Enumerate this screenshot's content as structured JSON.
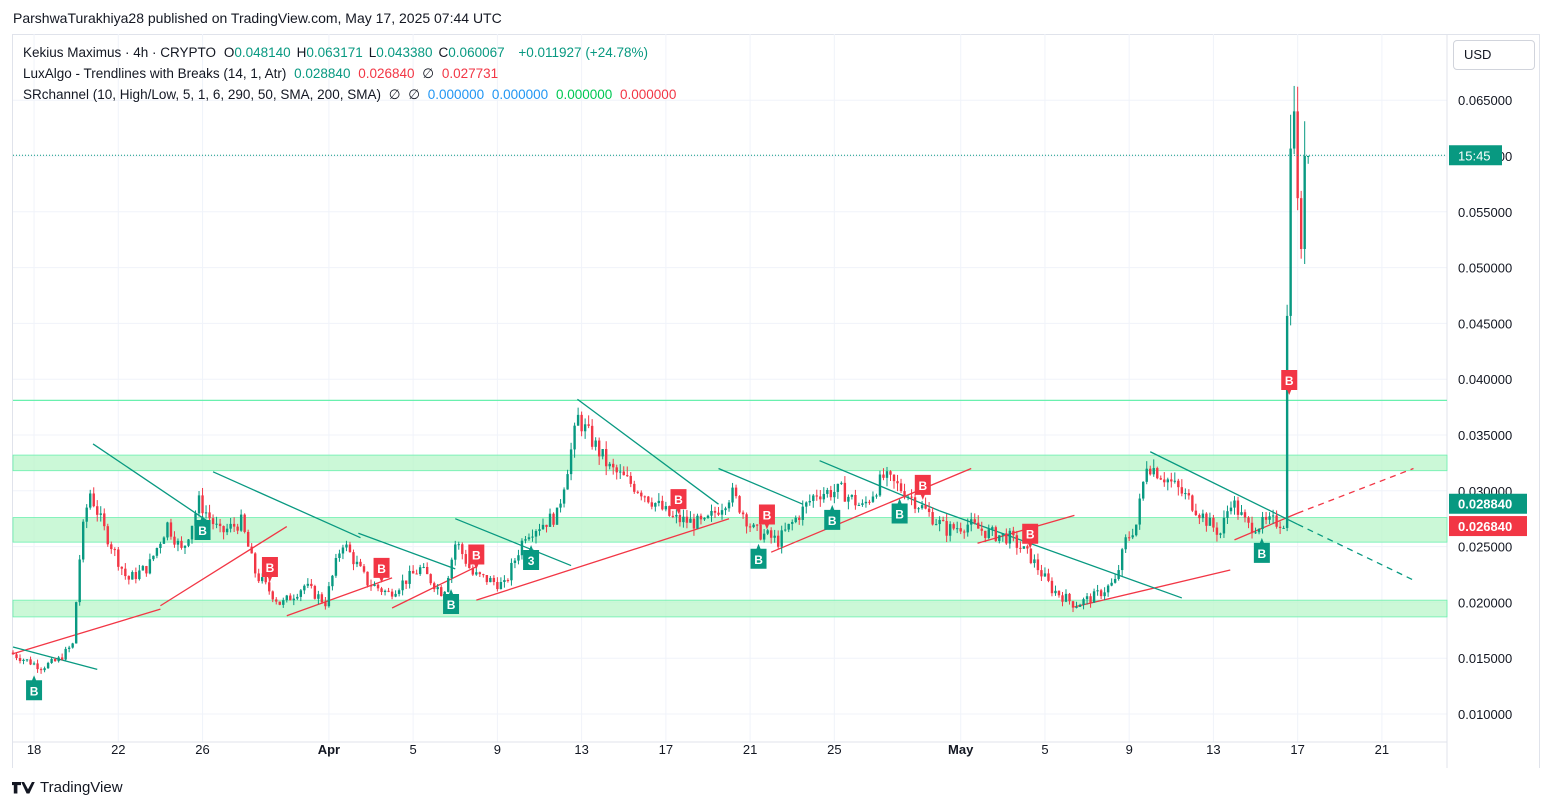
{
  "header": {
    "publish_line": "ParshwaTurakhiya28 published on TradingView.com, May 17, 2025 07:44 UTC",
    "currency": "USD",
    "logo_text": "TradingView"
  },
  "legend": {
    "symbol": "Kekius Maximus · 4h · CRYPTO",
    "ohlc": [
      {
        "key": "O",
        "value": "0.048140"
      },
      {
        "key": "H",
        "value": "0.063171"
      },
      {
        "key": "L",
        "value": "0.043380"
      },
      {
        "key": "C",
        "value": "0.060067"
      }
    ],
    "change": "+0.011927 (+24.78%)",
    "ind1_name": "LuxAlgo - Trendlines with Breaks (14, 1, Atr)",
    "ind1_v1": "0.028840",
    "ind1_v2": "0.026840",
    "ind1_v3": "∅",
    "ind1_v4": "0.027731",
    "ind2_name": "SRchannel (10, High/Low, 5, 1, 6, 290, 50, SMA, 200, SMA)",
    "ind2_e1": "∅",
    "ind2_e2": "∅",
    "ind2_v1": "0.000000",
    "ind2_v2": "0.000000",
    "ind2_v3": "0.000000",
    "ind2_v4": "0.000000"
  },
  "colors": {
    "up": "#089981",
    "down": "#f23645",
    "zone": "#b9f6ca",
    "zone_line": "#69f0ae",
    "text": "#131722",
    "grid": "#f0f3fa"
  },
  "chart_data": {
    "type": "candlestick",
    "timeframe": "4h",
    "x_range_days": [
      0,
      35
    ],
    "ylim": [
      0.0085,
      0.0685
    ],
    "price_ticks": [
      "0.010000",
      "0.015000",
      "0.020000",
      "0.025000",
      "0.030000",
      "0.035000",
      "0.040000",
      "0.045000",
      "0.050000",
      "0.055000",
      "0.060000",
      "0.065000"
    ],
    "x_ticks": [
      {
        "day": 1,
        "label": "18"
      },
      {
        "day": 5,
        "label": "22"
      },
      {
        "day": 9,
        "label": "26"
      },
      {
        "day": 15,
        "label": "Apr"
      },
      {
        "day": 19,
        "label": "5"
      },
      {
        "day": 23,
        "label": "9"
      },
      {
        "day": 27,
        "label": "13"
      },
      {
        "day": 31,
        "label": "17"
      },
      {
        "day": 35,
        "label": "21"
      },
      {
        "day": 39,
        "label": "25"
      },
      {
        "day": 45,
        "label": "May"
      },
      {
        "day": 49,
        "label": "5"
      },
      {
        "day": 53,
        "label": "9"
      },
      {
        "day": 57,
        "label": "13"
      },
      {
        "day": 61,
        "label": "17"
      },
      {
        "day": 65,
        "label": "21"
      }
    ],
    "last_price_countdown": "15:45",
    "last_price": 0.060067,
    "price_labels": [
      {
        "value": 0.02884,
        "text": "0.028840",
        "color": "#089981"
      },
      {
        "value": 0.02684,
        "text": "0.026840",
        "color": "#f23645"
      }
    ],
    "sr_zones": [
      {
        "low": 0.0318,
        "high": 0.0332
      },
      {
        "low": 0.0254,
        "high": 0.0276
      },
      {
        "low": 0.0187,
        "high": 0.0202
      }
    ],
    "resistance_line": 0.0381,
    "path": [
      [
        0,
        0.0155
      ],
      [
        1.5,
        0.0142
      ],
      [
        2.3,
        0.0148
      ],
      [
        3,
        0.0162
      ],
      [
        3.4,
        0.0255
      ],
      [
        3.8,
        0.03
      ],
      [
        4.5,
        0.0265
      ],
      [
        5.6,
        0.022
      ],
      [
        6.6,
        0.0232
      ],
      [
        7.5,
        0.027
      ],
      [
        8.2,
        0.0245
      ],
      [
        9,
        0.029
      ],
      [
        10,
        0.0262
      ],
      [
        11,
        0.0272
      ],
      [
        11.7,
        0.0225
      ],
      [
        12.9,
        0.0198
      ],
      [
        14,
        0.0215
      ],
      [
        15,
        0.02
      ],
      [
        15.8,
        0.0255
      ],
      [
        17,
        0.0218
      ],
      [
        18,
        0.0208
      ],
      [
        19.5,
        0.023
      ],
      [
        20.6,
        0.0208
      ],
      [
        21.2,
        0.0255
      ],
      [
        22,
        0.0225
      ],
      [
        23.5,
        0.0215
      ],
      [
        24.5,
        0.0262
      ],
      [
        26,
        0.0278
      ],
      [
        27,
        0.0365
      ],
      [
        28.5,
        0.032
      ],
      [
        30,
        0.03
      ],
      [
        31.5,
        0.0275
      ],
      [
        33,
        0.027
      ],
      [
        34.3,
        0.0298
      ],
      [
        35.3,
        0.0265
      ],
      [
        36.5,
        0.0255
      ],
      [
        38.3,
        0.0298
      ],
      [
        39.5,
        0.03
      ],
      [
        40.5,
        0.0285
      ],
      [
        41.5,
        0.0312
      ],
      [
        42.5,
        0.03
      ],
      [
        43.5,
        0.0282
      ],
      [
        44.5,
        0.0265
      ],
      [
        45.5,
        0.027
      ],
      [
        46.5,
        0.0262
      ],
      [
        47.5,
        0.0258
      ],
      [
        48.5,
        0.024
      ],
      [
        49.5,
        0.0212
      ],
      [
        50.6,
        0.0198
      ],
      [
        51.5,
        0.0205
      ],
      [
        52.5,
        0.0218
      ],
      [
        53,
        0.0255
      ],
      [
        53.5,
        0.027
      ],
      [
        54,
        0.0325
      ],
      [
        55,
        0.031
      ],
      [
        56,
        0.0292
      ],
      [
        57,
        0.027
      ],
      [
        57.5,
        0.0262
      ],
      [
        58,
        0.0292
      ],
      [
        58.8,
        0.0268
      ],
      [
        59.5,
        0.027
      ],
      [
        60,
        0.0272
      ],
      [
        60.5,
        0.0272
      ],
      [
        60.8,
        0.06
      ],
      [
        61,
        0.064
      ],
      [
        61.3,
        0.05
      ],
      [
        61.5,
        0.06
      ]
    ],
    "breaks": [
      {
        "day": 1.0,
        "type": "B",
        "dir": "up"
      },
      {
        "day": 9.0,
        "type": "B",
        "dir": "up"
      },
      {
        "day": 12.2,
        "type": "B",
        "dir": "down"
      },
      {
        "day": 17.5,
        "type": "B",
        "dir": "down"
      },
      {
        "day": 20.8,
        "type": "B",
        "dir": "up"
      },
      {
        "day": 22.0,
        "type": "B",
        "dir": "down"
      },
      {
        "day": 24.6,
        "type": "3",
        "dir": "up"
      },
      {
        "day": 31.6,
        "type": "B",
        "dir": "down"
      },
      {
        "day": 35.4,
        "type": "B",
        "dir": "up"
      },
      {
        "day": 35.8,
        "type": "B",
        "dir": "down"
      },
      {
        "day": 38.9,
        "type": "B",
        "dir": "up"
      },
      {
        "day": 42.1,
        "type": "B",
        "dir": "up"
      },
      {
        "day": 43.2,
        "type": "B",
        "dir": "down"
      },
      {
        "day": 48.3,
        "type": "B",
        "dir": "down"
      },
      {
        "day": 59.3,
        "type": "B",
        "dir": "up"
      },
      {
        "day": 60.6,
        "type": "B",
        "dir": "down"
      }
    ],
    "trendlines": [
      {
        "color": "down",
        "dashed": false,
        "from": [
          0,
          0.0154
        ],
        "to": [
          7,
          0.0194
        ]
      },
      {
        "color": "down",
        "dashed": false,
        "from": [
          7,
          0.0197
        ],
        "to": [
          13,
          0.0268
        ]
      },
      {
        "color": "down",
        "dashed": false,
        "from": [
          13,
          0.0188
        ],
        "to": [
          18,
          0.0222
        ]
      },
      {
        "color": "down",
        "dashed": false,
        "from": [
          18,
          0.0195
        ],
        "to": [
          22,
          0.0232
        ]
      },
      {
        "color": "down",
        "dashed": false,
        "from": [
          22,
          0.0202
        ],
        "to": [
          34,
          0.0275
        ]
      },
      {
        "color": "down",
        "dashed": false,
        "from": [
          36,
          0.0245
        ],
        "to": [
          45.5,
          0.032
        ]
      },
      {
        "color": "down",
        "dashed": false,
        "from": [
          45.8,
          0.0253
        ],
        "to": [
          50.4,
          0.0278
        ]
      },
      {
        "color": "down",
        "dashed": false,
        "from": [
          50.4,
          0.0196
        ],
        "to": [
          57.8,
          0.0229
        ]
      },
      {
        "color": "down",
        "dashed": false,
        "from": [
          58,
          0.0256
        ],
        "to": [
          61,
          0.028
        ]
      },
      {
        "color": "down",
        "dashed": true,
        "from": [
          61,
          0.028
        ],
        "to": [
          66.5,
          0.032
        ]
      },
      {
        "color": "up",
        "dashed": false,
        "from": [
          0,
          0.016
        ],
        "to": [
          4,
          0.014
        ]
      },
      {
        "color": "up",
        "dashed": false,
        "from": [
          3.8,
          0.0342
        ],
        "to": [
          9.3,
          0.0272
        ]
      },
      {
        "color": "up",
        "dashed": false,
        "from": [
          9.5,
          0.0317
        ],
        "to": [
          16.5,
          0.0258
        ]
      },
      {
        "color": "up",
        "dashed": false,
        "from": [
          16.4,
          0.0262
        ],
        "to": [
          21,
          0.023
        ]
      },
      {
        "color": "up",
        "dashed": false,
        "from": [
          21,
          0.0275
        ],
        "to": [
          26.5,
          0.0233
        ]
      },
      {
        "color": "up",
        "dashed": false,
        "from": [
          26.8,
          0.0382
        ],
        "to": [
          33.5,
          0.0288
        ]
      },
      {
        "color": "up",
        "dashed": false,
        "from": [
          33.5,
          0.032
        ],
        "to": [
          37.5,
          0.0288
        ]
      },
      {
        "color": "up",
        "dashed": false,
        "from": [
          38.3,
          0.0327
        ],
        "to": [
          44,
          0.0282
        ]
      },
      {
        "color": "up",
        "dashed": false,
        "from": [
          44,
          0.0282
        ],
        "to": [
          55.5,
          0.0204
        ]
      },
      {
        "color": "up",
        "dashed": false,
        "from": [
          54,
          0.0335
        ],
        "to": [
          61,
          0.027
        ]
      },
      {
        "color": "up",
        "dashed": true,
        "from": [
          61,
          0.027
        ],
        "to": [
          66.5,
          0.022
        ]
      }
    ]
  }
}
